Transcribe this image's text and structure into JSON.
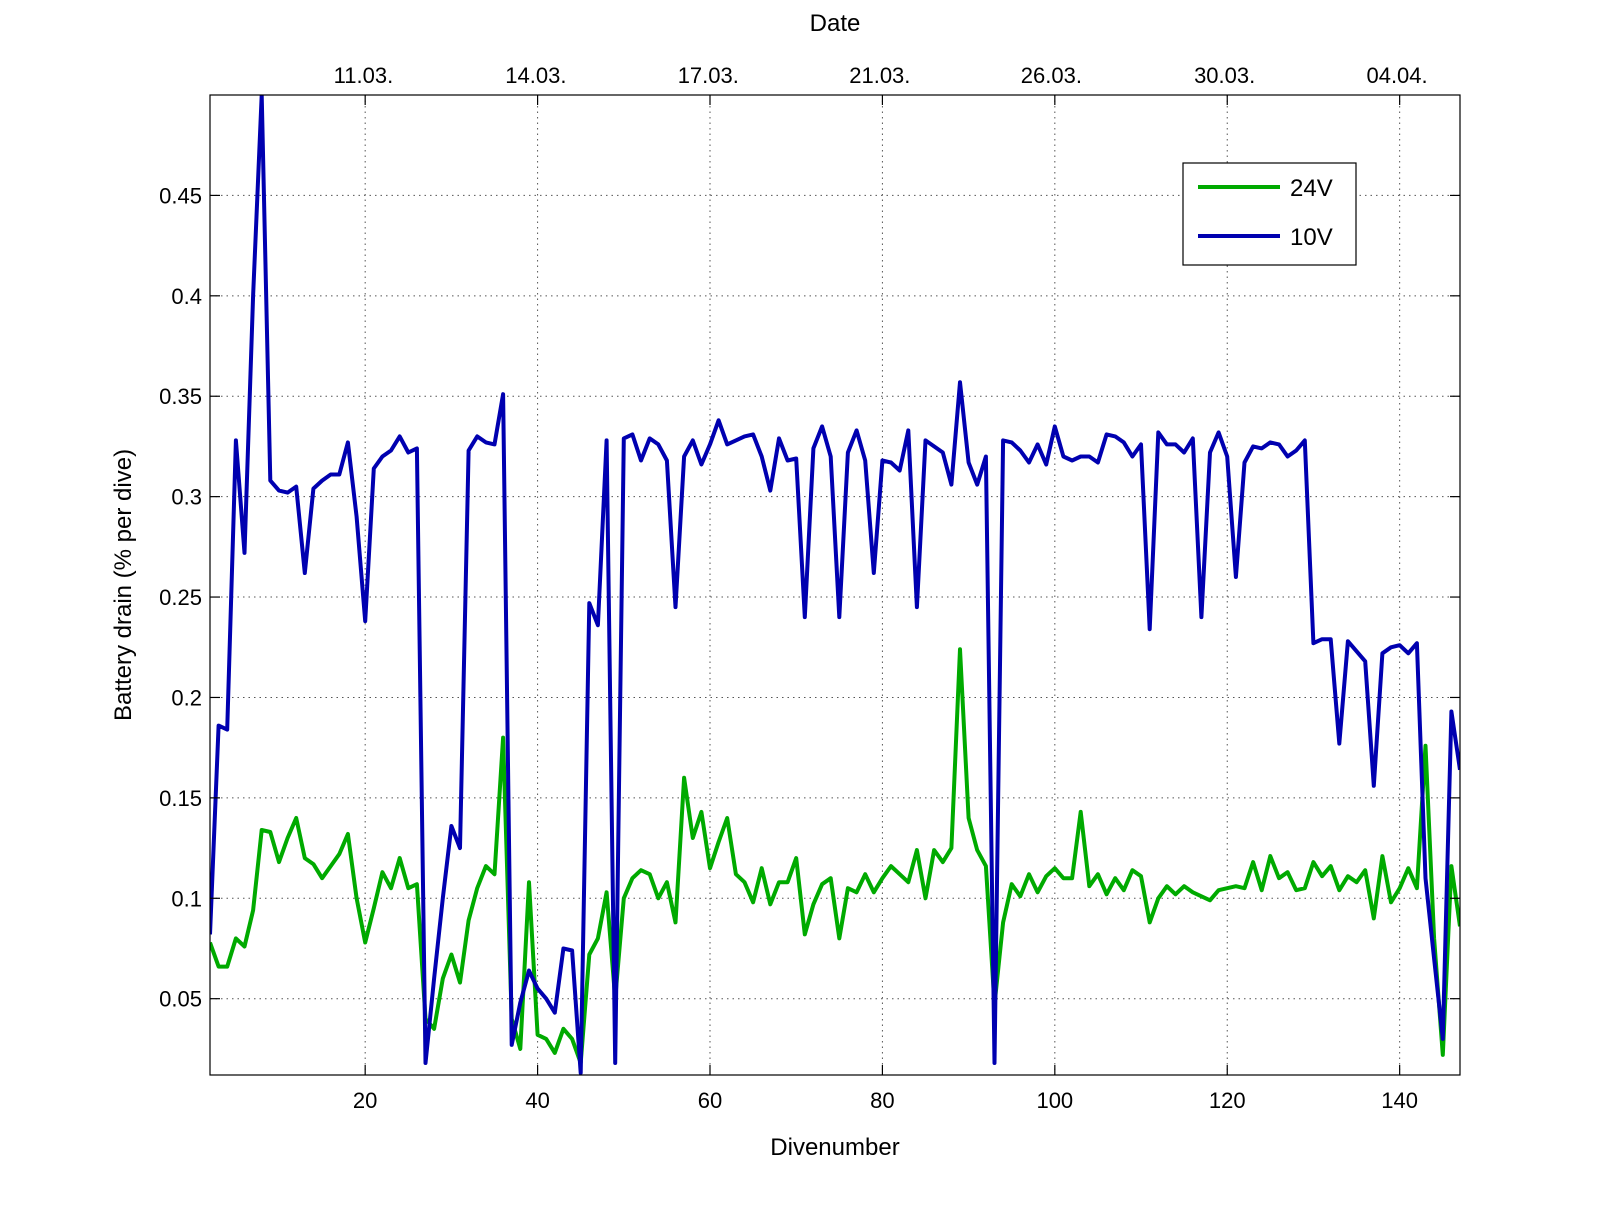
{
  "chart_data": {
    "type": "line",
    "xlabel": "Divenumber",
    "ylabel": "Battery drain (% per dive)",
    "x2label": "Date",
    "xlim": [
      2,
      147
    ],
    "ylim": [
      0.012,
      0.5
    ],
    "grid": true,
    "legend_position": "top-right",
    "x_ticks": [
      20,
      40,
      60,
      80,
      100,
      120,
      140
    ],
    "y_ticks": [
      0.05,
      0.1,
      0.15,
      0.2,
      0.25,
      0.3,
      0.35,
      0.4,
      0.45
    ],
    "y_tick_labels": [
      "0.05",
      "0.1",
      "0.15",
      "0.2",
      "0.25",
      "0.3",
      "0.35",
      "0.4",
      "0.45"
    ],
    "x2_ticks": [
      {
        "label": "11.03.",
        "dive": 19.8
      },
      {
        "label": "14.03.",
        "dive": 39.8
      },
      {
        "label": "17.03.",
        "dive": 59.8
      },
      {
        "label": "21.03.",
        "dive": 79.7
      },
      {
        "label": "26.03.",
        "dive": 99.6
      },
      {
        "label": "30.03.",
        "dive": 119.7
      },
      {
        "label": "04.04.",
        "dive": 139.7
      }
    ],
    "series": [
      {
        "name": "24V",
        "color": "#00aa00",
        "x": [
          2,
          3,
          4,
          5,
          6,
          7,
          8,
          9,
          10,
          11,
          12,
          13,
          14,
          15,
          16,
          17,
          18,
          19,
          20,
          21,
          22,
          23,
          24,
          25,
          26,
          27,
          28,
          29,
          30,
          31,
          32,
          33,
          34,
          35,
          36,
          37,
          38,
          39,
          40,
          41,
          42,
          43,
          44,
          45,
          46,
          47,
          48,
          49,
          50,
          51,
          52,
          53,
          54,
          55,
          56,
          57,
          58,
          59,
          60,
          61,
          62,
          63,
          64,
          65,
          66,
          67,
          68,
          69,
          70,
          71,
          72,
          73,
          74,
          75,
          76,
          77,
          78,
          79,
          80,
          81,
          82,
          83,
          84,
          85,
          86,
          87,
          88,
          89,
          90,
          91,
          92,
          93,
          94,
          95,
          96,
          97,
          98,
          99,
          100,
          101,
          102,
          103,
          104,
          105,
          106,
          107,
          108,
          109,
          110,
          111,
          112,
          113,
          114,
          115,
          116,
          117,
          118,
          119,
          120,
          121,
          122,
          123,
          124,
          125,
          126,
          127,
          128,
          129,
          130,
          131,
          132,
          133,
          134,
          135,
          136,
          137,
          138,
          139,
          140,
          141,
          142,
          143,
          144,
          145,
          146,
          147
        ],
        "y": [
          0.078,
          0.066,
          0.066,
          0.08,
          0.076,
          0.094,
          0.134,
          0.133,
          0.118,
          0.13,
          0.14,
          0.12,
          0.117,
          0.11,
          0.116,
          0.122,
          0.132,
          0.1,
          0.078,
          0.095,
          0.113,
          0.105,
          0.12,
          0.105,
          0.107,
          0.04,
          0.035,
          0.06,
          0.072,
          0.058,
          0.089,
          0.105,
          0.116,
          0.112,
          0.18,
          0.04,
          0.025,
          0.108,
          0.032,
          0.03,
          0.023,
          0.035,
          0.03,
          0.018,
          0.072,
          0.08,
          0.103,
          0.05,
          0.1,
          0.11,
          0.114,
          0.112,
          0.1,
          0.108,
          0.088,
          0.16,
          0.13,
          0.143,
          0.115,
          0.128,
          0.14,
          0.112,
          0.108,
          0.098,
          0.115,
          0.097,
          0.108,
          0.108,
          0.12,
          0.082,
          0.097,
          0.107,
          0.11,
          0.08,
          0.105,
          0.103,
          0.112,
          0.103,
          0.11,
          0.116,
          0.112,
          0.108,
          0.124,
          0.1,
          0.124,
          0.118,
          0.125,
          0.224,
          0.14,
          0.124,
          0.116,
          0.047,
          0.088,
          0.107,
          0.101,
          0.112,
          0.103,
          0.111,
          0.115,
          0.11,
          0.11,
          0.143,
          0.106,
          0.112,
          0.102,
          0.11,
          0.104,
          0.114,
          0.111,
          0.088,
          0.1,
          0.106,
          0.102,
          0.106,
          0.103,
          0.101,
          0.099,
          0.104,
          0.105,
          0.106,
          0.105,
          0.118,
          0.104,
          0.121,
          0.11,
          0.113,
          0.104,
          0.105,
          0.118,
          0.111,
          0.116,
          0.104,
          0.111,
          0.108,
          0.114,
          0.09,
          0.121,
          0.098,
          0.105,
          0.115,
          0.105,
          0.176,
          0.08,
          0.022,
          0.116,
          0.086
        ]
      },
      {
        "name": "10V",
        "color": "#0000b0",
        "x": [
          2,
          3,
          4,
          5,
          6,
          7,
          8,
          9,
          10,
          11,
          12,
          13,
          14,
          15,
          16,
          17,
          18,
          19,
          20,
          21,
          22,
          23,
          24,
          25,
          26,
          27,
          28,
          29,
          30,
          31,
          32,
          33,
          34,
          35,
          36,
          37,
          38,
          39,
          40,
          41,
          42,
          43,
          44,
          45,
          46,
          47,
          48,
          49,
          50,
          51,
          52,
          53,
          54,
          55,
          56,
          57,
          58,
          59,
          60,
          61,
          62,
          63,
          64,
          65,
          66,
          67,
          68,
          69,
          70,
          71,
          72,
          73,
          74,
          75,
          76,
          77,
          78,
          79,
          80,
          81,
          82,
          83,
          84,
          85,
          86,
          87,
          88,
          89,
          90,
          91,
          92,
          93,
          94,
          95,
          96,
          97,
          98,
          99,
          100,
          101,
          102,
          103,
          104,
          105,
          106,
          107,
          108,
          109,
          110,
          111,
          112,
          113,
          114,
          115,
          116,
          117,
          118,
          119,
          120,
          121,
          122,
          123,
          124,
          125,
          126,
          127,
          128,
          129,
          130,
          131,
          132,
          133,
          134,
          135,
          136,
          137,
          138,
          139,
          140,
          141,
          142,
          143,
          144,
          145,
          146,
          147
        ],
        "y": [
          0.082,
          0.186,
          0.184,
          0.328,
          0.272,
          0.4,
          0.5,
          0.308,
          0.303,
          0.302,
          0.305,
          0.262,
          0.304,
          0.308,
          0.311,
          0.311,
          0.327,
          0.29,
          0.238,
          0.314,
          0.32,
          0.323,
          0.33,
          0.322,
          0.324,
          0.018,
          0.06,
          0.1,
          0.136,
          0.125,
          0.323,
          0.33,
          0.327,
          0.326,
          0.351,
          0.027,
          0.048,
          0.064,
          0.055,
          0.05,
          0.043,
          0.075,
          0.074,
          0.013,
          0.247,
          0.236,
          0.328,
          0.018,
          0.329,
          0.331,
          0.318,
          0.329,
          0.326,
          0.318,
          0.245,
          0.32,
          0.328,
          0.316,
          0.326,
          0.338,
          0.326,
          0.328,
          0.33,
          0.331,
          0.32,
          0.303,
          0.329,
          0.318,
          0.319,
          0.24,
          0.324,
          0.335,
          0.32,
          0.24,
          0.322,
          0.333,
          0.318,
          0.262,
          0.318,
          0.317,
          0.313,
          0.333,
          0.245,
          0.328,
          0.325,
          0.322,
          0.306,
          0.357,
          0.317,
          0.306,
          0.32,
          0.018,
          0.328,
          0.327,
          0.323,
          0.317,
          0.326,
          0.316,
          0.335,
          0.32,
          0.318,
          0.32,
          0.32,
          0.317,
          0.331,
          0.33,
          0.327,
          0.32,
          0.326,
          0.234,
          0.332,
          0.326,
          0.326,
          0.322,
          0.329,
          0.24,
          0.322,
          0.332,
          0.32,
          0.26,
          0.317,
          0.325,
          0.324,
          0.327,
          0.326,
          0.32,
          0.323,
          0.328,
          0.227,
          0.229,
          0.229,
          0.177,
          0.228,
          0.223,
          0.218,
          0.156,
          0.222,
          0.225,
          0.226,
          0.222,
          0.227,
          0.11,
          0.07,
          0.03,
          0.193,
          0.164
        ]
      }
    ]
  }
}
